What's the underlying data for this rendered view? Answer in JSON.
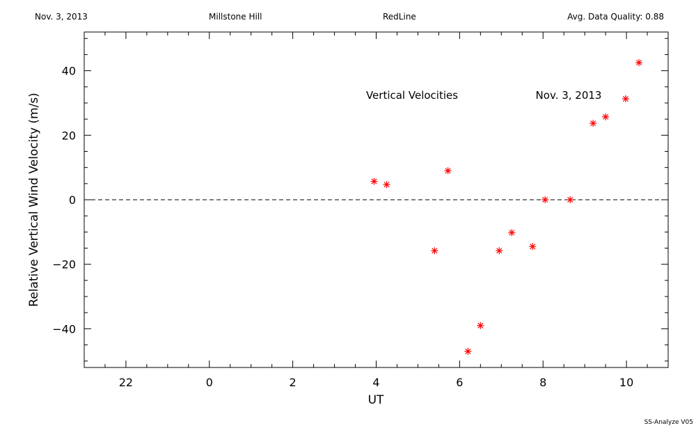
{
  "header": {
    "date": "Nov. 3, 2013",
    "site": "Millstone Hill",
    "line": "RedLine",
    "quality": "Avg. Data Quality: 0.88"
  },
  "footer": "SS-Analyze V05",
  "chart_data": {
    "type": "scatter",
    "title": "Vertical Velocities",
    "annotation": "Nov. 3, 2013",
    "xlabel": "UT",
    "ylabel": "Relative Vertical Wind Velocity (m/s)",
    "xlim": [
      21,
      35
    ],
    "ylim": [
      -52,
      52
    ],
    "xticks": [
      22,
      24,
      26,
      28,
      30,
      32,
      34
    ],
    "xtick_labels": [
      "22",
      "0",
      "2",
      "4",
      "6",
      "8",
      "10"
    ],
    "yticks": [
      -40,
      -20,
      0,
      20,
      40
    ],
    "ytick_labels": [
      "−40",
      "−20",
      "0",
      "20",
      "40"
    ],
    "zero_line": "dashed",
    "marker": "asterisk",
    "marker_color": "#ff0000",
    "points": [
      {
        "x": 27.95,
        "y": 5.7
      },
      {
        "x": 28.25,
        "y": 4.7
      },
      {
        "x": 29.4,
        "y": -15.8
      },
      {
        "x": 29.72,
        "y": 9.0
      },
      {
        "x": 30.2,
        "y": -47.0
      },
      {
        "x": 30.5,
        "y": -39.0
      },
      {
        "x": 30.95,
        "y": -15.8
      },
      {
        "x": 31.25,
        "y": -10.2
      },
      {
        "x": 31.75,
        "y": -14.5
      },
      {
        "x": 32.05,
        "y": 0.0
      },
      {
        "x": 32.65,
        "y": 0.0
      },
      {
        "x": 33.2,
        "y": 23.7
      },
      {
        "x": 33.5,
        "y": 25.7
      },
      {
        "x": 33.98,
        "y": 31.3
      },
      {
        "x": 34.3,
        "y": 42.5
      }
    ]
  }
}
